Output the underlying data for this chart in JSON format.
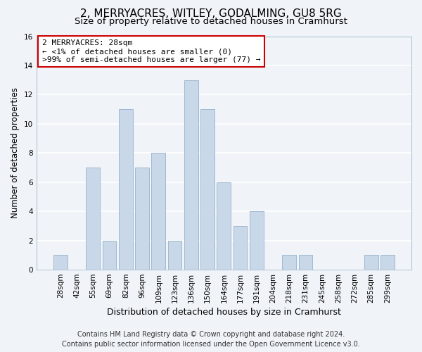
{
  "title": "2, MERRYACRES, WITLEY, GODALMING, GU8 5RG",
  "subtitle": "Size of property relative to detached houses in Cramhurst",
  "xlabel": "Distribution of detached houses by size in Cramhurst",
  "ylabel": "Number of detached properties",
  "bar_color": "#c8d8e8",
  "bar_edge_color": "#a0b8d0",
  "categories": [
    "28sqm",
    "42sqm",
    "55sqm",
    "69sqm",
    "82sqm",
    "96sqm",
    "109sqm",
    "123sqm",
    "136sqm",
    "150sqm",
    "164sqm",
    "177sqm",
    "191sqm",
    "204sqm",
    "218sqm",
    "231sqm",
    "245sqm",
    "258sqm",
    "272sqm",
    "285sqm",
    "299sqm"
  ],
  "values": [
    1,
    0,
    7,
    2,
    11,
    7,
    8,
    2,
    13,
    11,
    6,
    3,
    4,
    0,
    1,
    1,
    0,
    0,
    0,
    1,
    1
  ],
  "ylim": [
    0,
    16
  ],
  "yticks": [
    0,
    2,
    4,
    6,
    8,
    10,
    12,
    14,
    16
  ],
  "annotation_text_line1": "2 MERRYACRES: 28sqm",
  "annotation_text_line2": "← <1% of detached houses are smaller (0)",
  "annotation_text_line3": ">99% of semi-detached houses are larger (77) →",
  "annotation_box_color": "#ffffff",
  "annotation_box_edge_color": "#cc0000",
  "footer_line1": "Contains HM Land Registry data © Crown copyright and database right 2024.",
  "footer_line2": "Contains public sector information licensed under the Open Government Licence v3.0.",
  "background_color": "#f0f4f8",
  "grid_color": "#ffffff",
  "title_fontsize": 11,
  "subtitle_fontsize": 9.5,
  "xlabel_fontsize": 9,
  "ylabel_fontsize": 8.5,
  "tick_fontsize": 7.5,
  "annotation_fontsize": 8,
  "footer_fontsize": 7
}
